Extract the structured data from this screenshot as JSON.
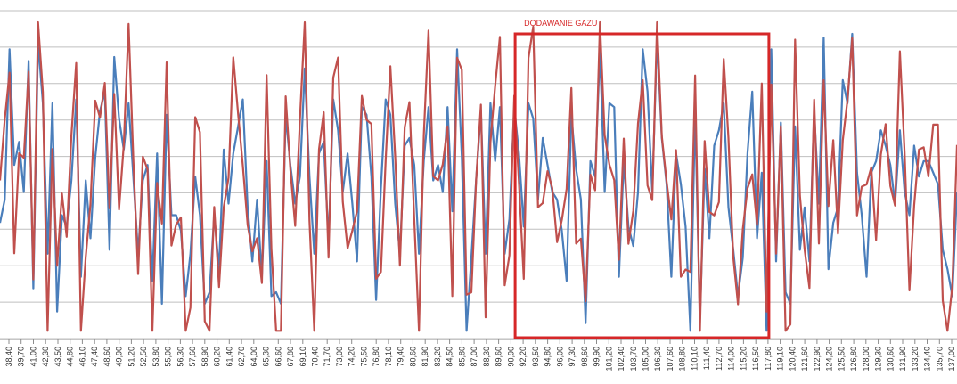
{
  "chart_data": {
    "type": "line",
    "title": "",
    "xlabel": "",
    "ylabel": "",
    "grid": true,
    "legend": "none",
    "x_tick_labels": [
      "38,40",
      "39,70",
      "41,00",
      "42,30",
      "43,50",
      "44,80",
      "46,10",
      "47,40",
      "48,60",
      "49,90",
      "51,20",
      "52,50",
      "53,80",
      "55,00",
      "56,30",
      "57,60",
      "58,90",
      "60,20",
      "61,40",
      "62,70",
      "64,00",
      "65,30",
      "66,60",
      "67,80",
      "69,10",
      "70,40",
      "71,70",
      "73,00",
      "74,20",
      "75,50",
      "76,80",
      "78,10",
      "79,40",
      "80,60",
      "81,90",
      "83,20",
      "84,50",
      "85,80",
      "87,00",
      "88,30",
      "89,60",
      "90,90",
      "92,20",
      "93,50",
      "94,80",
      "96,00",
      "97,30",
      "98,60",
      "99,90",
      "101,20",
      "102,40",
      "103,70",
      "105,00",
      "106,30",
      "107,60",
      "108,80",
      "110,10",
      "111,40",
      "112,70",
      "114,00",
      "115,20",
      "116,50",
      "117,80",
      "119,10",
      "120,40",
      "121,60",
      "122,90",
      "124,20",
      "125,50",
      "126,80",
      "128,00",
      "129,30",
      "130,60",
      "131,90",
      "133,20",
      "134,40",
      "135,70",
      "137,00"
    ],
    "annotation": {
      "label": "DODAWANIE GAZU",
      "x_from": "92,20",
      "x_to": "117,80",
      "color": "#d62728"
    },
    "series": [
      {
        "color": "#4a7ebb",
        "values": [
          3.0,
          3.6,
          7.5,
          4.5,
          5.1,
          3.8,
          7.2,
          1.3,
          7.7,
          6.1,
          2.2,
          6.1,
          0.7,
          3.2,
          2.9,
          4.1,
          6.2,
          1.6,
          4.1,
          2.6,
          4.7,
          5.9,
          6.4,
          2.3,
          7.3,
          5.7,
          4.9,
          6.1,
          4.2,
          2.2,
          4.1,
          4.5,
          1.5,
          4.8,
          0.9,
          5.8,
          3.2,
          3.2,
          2.8,
          1.1,
          2.2,
          4.2,
          3.2,
          0.9,
          1.2,
          3.2,
          1.8,
          4.9,
          3.5,
          4.8,
          5.5,
          6.2,
          3.4,
          2.0,
          3.6,
          1.6,
          4.6,
          1.1,
          1.2,
          0.9,
          5.8,
          4.5,
          3.5,
          4.2,
          7.0,
          4.2,
          2.2,
          4.8,
          5.1,
          2.5,
          6.2,
          5.4,
          3.8,
          4.8,
          3.5,
          2.0,
          6.0,
          5.8,
          4.2,
          1.0,
          3.9,
          6.2,
          5.8,
          3.5,
          2.2,
          5.0,
          5.2,
          4.5,
          2.2,
          4.6,
          6.0,
          4.1,
          4.5,
          3.8,
          6.0,
          3.3,
          7.5,
          4.7,
          0.2,
          2.1,
          4.1,
          5.9,
          2.2,
          6.1,
          4.6,
          6.0,
          2.2,
          3.1,
          6.0,
          4.8,
          2.9,
          6.1,
          5.7,
          3.6,
          5.2,
          4.5,
          3.8,
          3.6,
          2.8,
          1.5,
          5.8,
          4.4,
          3.6,
          0.4,
          4.6,
          4.2,
          7.5,
          3.8,
          6.1,
          6.0,
          1.6,
          4.6,
          2.9,
          2.4,
          3.8,
          7.5,
          6.4,
          3.8,
          7.8,
          5.2,
          4.0,
          1.6,
          4.8,
          4.0,
          2.9,
          0.2,
          5.9,
          0.5,
          4.4,
          2.6,
          5.0,
          5.4,
          6.1,
          3.4,
          2.3,
          1.1,
          2.1,
          4.8,
          6.4,
          2.6,
          4.3,
          0.2,
          7.5,
          2.0,
          5.6,
          1.2,
          0.9,
          5.5,
          2.3,
          3.4,
          2.0,
          5.9,
          3.5,
          7.8,
          1.8,
          3.0,
          3.4,
          6.7,
          6.1,
          7.9,
          4.3,
          3.2,
          1.6,
          4.3,
          4.6,
          5.4,
          5.0,
          4.5,
          3.5,
          5.4,
          3.8,
          3.2,
          5.0,
          4.2,
          4.6,
          4.6,
          4.3,
          4.0,
          2.3,
          1.8,
          1.1,
          3.8
        ],
        "description_note": ""
      }
    ]
  }
}
